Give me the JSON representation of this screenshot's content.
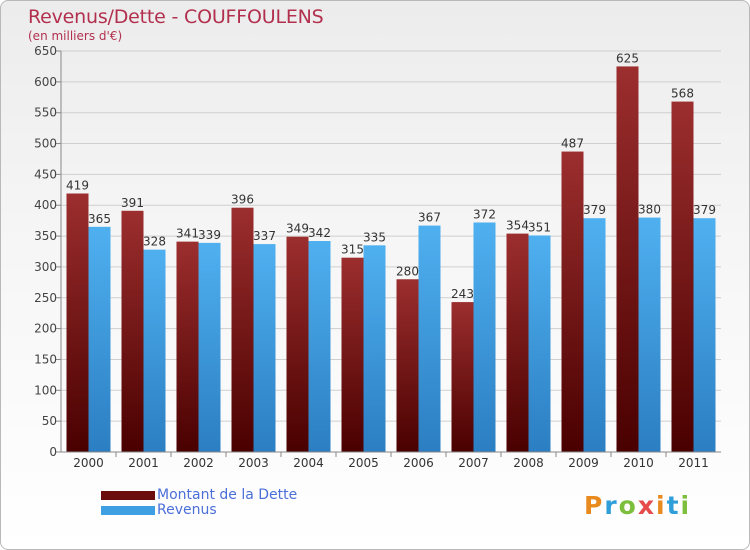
{
  "title": "Revenus/Dette - COUFFOULENS",
  "subtitle": "(en milliers d'€)",
  "logo": {
    "text": "Proxiti",
    "colors": [
      "#e98a1f",
      "#2f9ed9",
      "#7cbf3c",
      "#e54b4b",
      "#e98a1f",
      "#2f9ed9",
      "#7cbf3c"
    ]
  },
  "colors": {
    "dette": "#8b1f22",
    "revenus": "#3e9fe3",
    "title": "#b2304e",
    "legend_text": "#4b6fd9"
  },
  "legend": [
    {
      "label": "Montant de la Dette",
      "color": "#6b0d0d"
    },
    {
      "label": "Revenus",
      "color": "#3e9fe3"
    }
  ],
  "chart_data": {
    "type": "bar",
    "categories": [
      "2000",
      "2001",
      "2002",
      "2003",
      "2004",
      "2005",
      "2006",
      "2007",
      "2008",
      "2009",
      "2010",
      "2011"
    ],
    "series": [
      {
        "name": "Montant de la Dette",
        "values": [
          419,
          391,
          341,
          396,
          349,
          315,
          280,
          243,
          354,
          487,
          625,
          568
        ]
      },
      {
        "name": "Revenus",
        "values": [
          365,
          328,
          339,
          337,
          342,
          335,
          367,
          372,
          351,
          379,
          380,
          379
        ]
      }
    ],
    "yticks": [
      0,
      50,
      100,
      150,
      200,
      250,
      300,
      350,
      400,
      450,
      500,
      550,
      600,
      650
    ],
    "ylim": [
      0,
      650
    ],
    "grid": true,
    "legend_position": "bottom-left"
  }
}
